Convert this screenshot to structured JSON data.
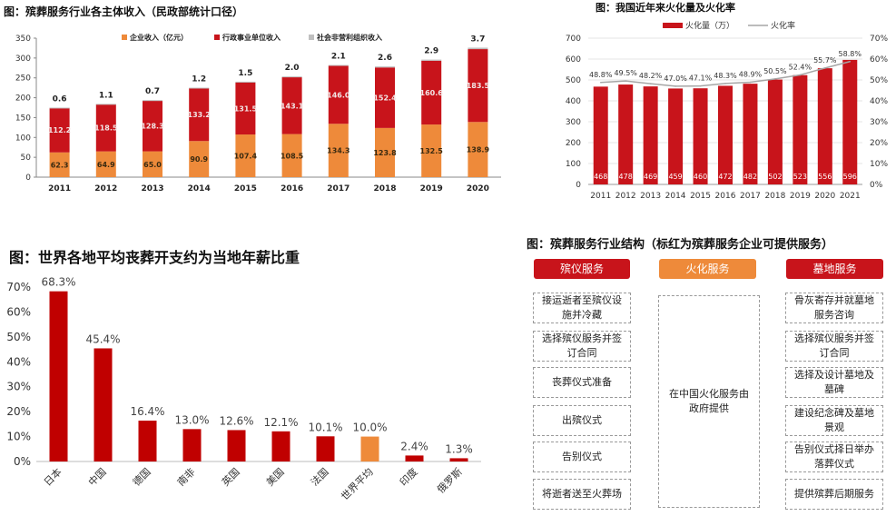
{
  "chart_data": [
    {
      "type": "bar",
      "stacked": true,
      "title": "图：殡葬服务行业各主体收入（民政部统计口径）",
      "categories": [
        "2011",
        "2012",
        "2013",
        "2014",
        "2015",
        "2016",
        "2017",
        "2018",
        "2019",
        "2020"
      ],
      "series": [
        {
          "name": "企业收入（亿元）",
          "color": "#ee8a3a",
          "values": [
            62.3,
            64.9,
            65.0,
            90.9,
            107.4,
            108.5,
            134.3,
            123.8,
            132.5,
            138.9
          ]
        },
        {
          "name": "行政事业单位收入",
          "color": "#c8141b",
          "values": [
            112.2,
            118.5,
            128.3,
            133.2,
            131.5,
            143.1,
            146.0,
            152.4,
            160.6,
            183.5
          ]
        },
        {
          "name": "社会非营利组织收入",
          "color": "#bfbfbf",
          "values": [
            0.6,
            1.1,
            0.7,
            1.2,
            1.5,
            2.0,
            2.1,
            2.6,
            2.9,
            3.7
          ]
        }
      ],
      "ylim": [
        0,
        350
      ],
      "yticks": [
        "0",
        "50",
        "100",
        "150",
        "200",
        "250",
        "300",
        "350"
      ],
      "grid": false,
      "legend": "top"
    },
    {
      "type": "bar",
      "title": "图：我国近年来火化量及火化率",
      "categories": [
        "2011",
        "2012",
        "2013",
        "2014",
        "2015",
        "2016",
        "2017",
        "2018",
        "2019",
        "2020",
        "2021"
      ],
      "series": [
        {
          "name": "火化量（万）",
          "type": "bar",
          "color": "#c8141b",
          "axis": "left",
          "values": [
            468,
            478,
            469,
            459,
            460,
            472,
            482,
            502,
            523,
            556,
            596
          ]
        },
        {
          "name": "火化率",
          "type": "line",
          "color": "#a6a6a6",
          "axis": "right",
          "values": [
            48.8,
            49.5,
            48.2,
            47.0,
            47.1,
            48.3,
            48.9,
            50.5,
            52.4,
            55.7,
            58.8
          ],
          "labels": [
            "48.8%",
            "49.5%",
            "48.2%",
            "47.0%",
            "47.1%",
            "48.3%",
            "48.9%",
            "50.5%",
            "52.4%",
            "55.7%",
            "58.8%"
          ]
        }
      ],
      "ylim": [
        0,
        700
      ],
      "yticks": [
        "0",
        "100",
        "200",
        "300",
        "400",
        "500",
        "600",
        "700"
      ],
      "y2lim": [
        0,
        70
      ],
      "y2ticks": [
        "0%",
        "10%",
        "20%",
        "30%",
        "40%",
        "50%",
        "60%",
        "70%"
      ],
      "grid": true,
      "legend": "top"
    },
    {
      "type": "bar",
      "title": "图：世界各地平均丧葬开支约为当地年薪比重",
      "categories": [
        "日本",
        "中国",
        "德国",
        "南非",
        "英国",
        "美国",
        "法国",
        "世界平均",
        "印度",
        "俄罗斯"
      ],
      "values": [
        68.3,
        45.4,
        16.4,
        13.0,
        12.6,
        12.1,
        10.1,
        10.0,
        2.4,
        1.3
      ],
      "labels": [
        "68.3%",
        "45.4%",
        "16.4%",
        "13.0%",
        "12.6%",
        "12.1%",
        "10.1%",
        "10.0%",
        "2.4%",
        "1.3%"
      ],
      "colors": [
        "#c00000",
        "#c00000",
        "#c00000",
        "#c00000",
        "#c00000",
        "#c00000",
        "#c00000",
        "#ee8a3a",
        "#c00000",
        "#c00000"
      ],
      "ylim": [
        0,
        70
      ],
      "yticks": [
        "0%",
        "10%",
        "20%",
        "30%",
        "40%",
        "50%",
        "60%",
        "70%"
      ],
      "grid": false
    }
  ],
  "structure": {
    "title": "图：殡葬服务行业结构（标红为殡葬服务企业可提供服务）",
    "columns": [
      {
        "header": "殡仪服务",
        "color": "#c8141b",
        "items": [
          "接运逝者至殡仪设施并冷藏",
          "选择殡仪服务并签订合同",
          "丧葬仪式准备",
          "出殡仪式",
          "告别仪式",
          "将逝者送至火葬场"
        ]
      },
      {
        "header": "火化服务",
        "color": "#ee8a3a",
        "items": [
          "在中国火化服务由政府提供"
        ]
      },
      {
        "header": "墓地服务",
        "color": "#c8141b",
        "items": [
          "骨灰寄存并就墓地服务咨询",
          "选择殡仪服务并签订合同",
          "选择及设计墓地及墓碑",
          "建设纪念碑及墓地景观",
          "告别仪式择日举办落葬仪式",
          "提供殡葬后期服务"
        ]
      }
    ]
  }
}
